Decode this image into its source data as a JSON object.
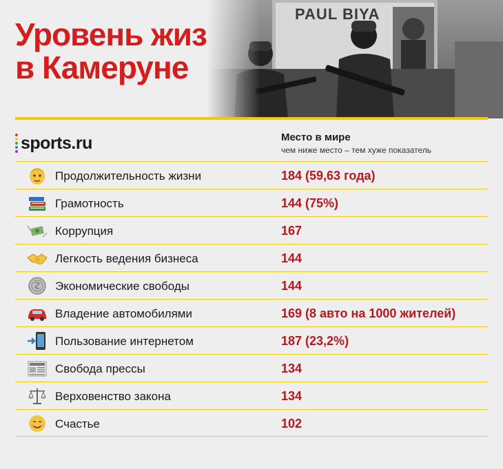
{
  "title": {
    "line1": "Уровень жизни",
    "line2": "в Камеруне"
  },
  "photo": {
    "billboard_text": "PAUL BIYA"
  },
  "logo": {
    "text": "sports.ru",
    "dot_colors": [
      "#e6332a",
      "#f2c80f",
      "#3aa935",
      "#2f7fd1",
      "#9b2fae"
    ]
  },
  "header": {
    "column_title": "Место в мире",
    "column_note": "чем ниже место – тем хуже показатель"
  },
  "colors": {
    "title": "#d41e1e",
    "value": "#b5181f",
    "rule": "#f2c80f"
  },
  "rows": [
    {
      "icon": "man-face-icon",
      "label": "Продолжительность жизни",
      "value": "184 (59,63 года)"
    },
    {
      "icon": "books-icon",
      "label": "Грамотность",
      "value": "144 (75%)"
    },
    {
      "icon": "money-wings-icon",
      "label": "Коррупция",
      "value": "167"
    },
    {
      "icon": "handshake-icon",
      "label": "Легкость ведения бизнеса",
      "value": "144"
    },
    {
      "icon": "coin-icon",
      "label": "Экономические свободы",
      "value": "144"
    },
    {
      "icon": "car-icon",
      "label": "Владение автомобилями",
      "value": "169 (8 авто на 1000 жителей)"
    },
    {
      "icon": "mobile-arrow-icon",
      "label": "Пользование интернетом",
      "value": "187 (23,2%)"
    },
    {
      "icon": "newspaper-icon",
      "label": "Свобода прессы",
      "value": "134"
    },
    {
      "icon": "scales-icon",
      "label": "Верховенство закона",
      "value": "134"
    },
    {
      "icon": "smile-icon",
      "label": "Счастье",
      "value": "102"
    }
  ]
}
